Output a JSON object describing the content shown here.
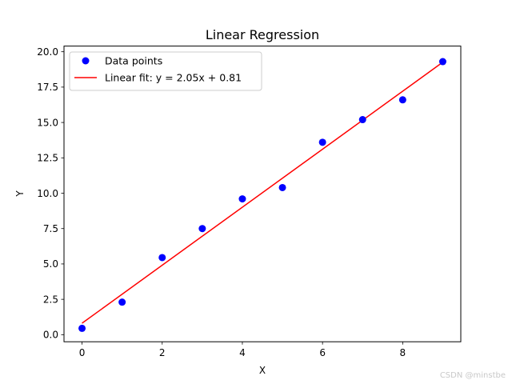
{
  "chart_data": {
    "type": "scatter",
    "title": "Linear Regression",
    "xlabel": "X",
    "ylabel": "Y",
    "xlim": [
      -0.45,
      9.45
    ],
    "ylim": [
      -0.5,
      20.4
    ],
    "xticks": [
      0,
      2,
      4,
      6,
      8
    ],
    "xtick_labels": [
      "0",
      "2",
      "4",
      "6",
      "8"
    ],
    "yticks": [
      0,
      2.5,
      5,
      7.5,
      10,
      12.5,
      15,
      17.5,
      20
    ],
    "ytick_labels": [
      "0.0",
      "2.5",
      "5.0",
      "7.5",
      "10.0",
      "12.5",
      "15.0",
      "17.5",
      "20.0"
    ],
    "grid": false,
    "legend_position": "top-left",
    "series": [
      {
        "name": "Data points",
        "kind": "scatter",
        "color": "#0000ff",
        "x": [
          0,
          1,
          2,
          3,
          4,
          5,
          6,
          7,
          8,
          9
        ],
        "y": [
          0.45,
          2.3,
          5.45,
          7.5,
          9.6,
          10.4,
          13.6,
          15.2,
          16.6,
          19.3
        ]
      },
      {
        "name": "Linear fit: y = 2.05x + 0.81",
        "kind": "line",
        "color": "#ff0000",
        "x": [
          0,
          9
        ],
        "y": [
          0.81,
          19.26
        ]
      }
    ]
  },
  "watermark": "CSDN @minstbe"
}
